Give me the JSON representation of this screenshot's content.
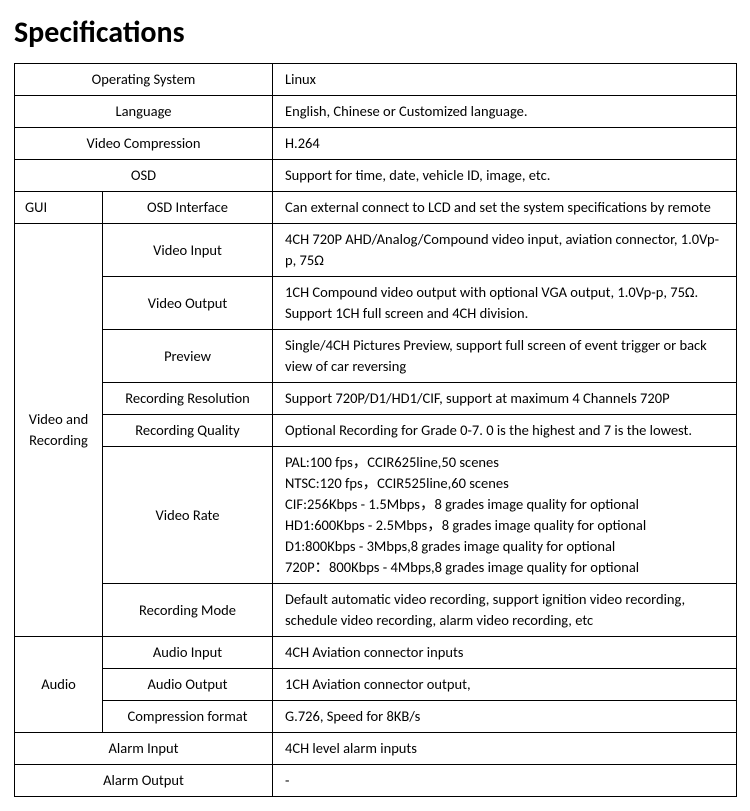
{
  "title": "Specifications",
  "rows": {
    "os": {
      "label": "Operating System",
      "value": "Linux"
    },
    "lang": {
      "label": "Language",
      "value": "English, Chinese or Customized language."
    },
    "vcomp": {
      "label": "Video Compression",
      "value": "H.264"
    },
    "osd": {
      "label": "OSD",
      "value": "Support    for time, date, vehicle ID, image, etc."
    },
    "gui": {
      "left": "GUI",
      "label": "OSD Interface",
      "value": "Can external connect to LCD and set the system specifications by remote"
    },
    "vr_group": "Video and Recording",
    "vin": {
      "label": "Video Input",
      "value": "4CH 720P AHD/Analog/Compound video input, aviation connector, 1.0Vp-p, 75Ω"
    },
    "vout": {
      "label": "Video Output",
      "value": "1CH Compound video output with optional VGA output, 1.0Vp-p, 75Ω. Support 1CH full screen and 4CH division."
    },
    "preview": {
      "label": "Preview",
      "value": "Single/4CH Pictures Preview, support full screen of event trigger or back view of car reversing"
    },
    "recres": {
      "label": "Recording Resolution",
      "value": "Support 720P/D1/HD1/CIF, support at maximum 4 Channels 720P"
    },
    "recq": {
      "label": "Recording Quality",
      "value": "Optional Recording for Grade 0-7. 0 is the highest and 7 is the lowest."
    },
    "vrate": {
      "label": "Video Rate",
      "lines": [
        "PAL:100 fps，CCIR625line,50 scenes",
        "NTSC:120 fps，CCIR525line,60 scenes",
        "CIF:256Kbps - 1.5Mbps，8 grades image quality for optional",
        "HD1:600Kbps - 2.5Mbps，8 grades image quality for optional",
        "D1:800Kbps - 3Mbps,8 grades image quality for optional",
        "720P：800Kbps - 4Mbps,8 grades image quality for optional"
      ]
    },
    "recmode": {
      "label": "Recording Mode",
      "value": "Default automatic video recording, support ignition video recording, schedule video recording, alarm video recording, etc"
    },
    "audio_group": "Audio",
    "ain": {
      "label": "Audio Input",
      "value": "4CH Aviation connector inputs"
    },
    "aout": {
      "label": "Audio Output",
      "value": "1CH Aviation connector output,"
    },
    "acomp": {
      "label": "Compression format",
      "value": "G.726, Speed for 8KB/s"
    },
    "alarmin": {
      "label": "Alarm Input",
      "value": "4CH level alarm inputs"
    },
    "alarmout": {
      "label": "Alarm Output",
      "value": "-"
    }
  }
}
